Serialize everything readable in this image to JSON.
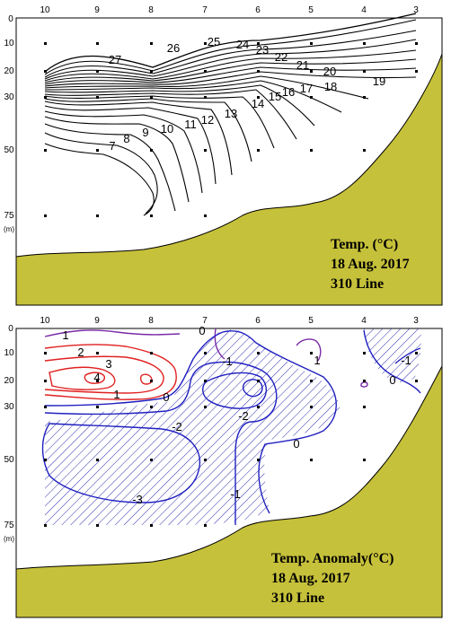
{
  "chart_data": [
    {
      "type": "contour",
      "title_lines": [
        "Temp. (°C)",
        "18 Aug. 2017",
        "310 Line"
      ],
      "x_ticks": [
        "10",
        "9",
        "8",
        "7",
        "6",
        "5",
        "4",
        "3"
      ],
      "y_ticks": [
        "0",
        "10",
        "20",
        "30",
        "50",
        "75"
      ],
      "y_unit": "(m)",
      "contour_values": [
        27,
        26,
        25,
        24,
        23,
        22,
        21,
        20,
        19,
        18,
        17,
        16,
        15,
        14,
        13,
        12,
        11,
        10,
        9,
        8,
        7
      ],
      "colors": {
        "land": "#c6c13a",
        "line": "#000000"
      }
    },
    {
      "type": "contour",
      "title_lines": [
        "Temp.  Anomaly(°C)",
        "18 Aug. 2017",
        "310 Line"
      ],
      "x_ticks": [
        "10",
        "9",
        "8",
        "7",
        "6",
        "5",
        "4",
        "3"
      ],
      "y_ticks": [
        "0",
        "10",
        "20",
        "30",
        "50",
        "75"
      ],
      "y_unit": "(m)",
      "contour_labels": [
        "1",
        "2",
        "3",
        "4",
        "1",
        "0",
        "0",
        "-1",
        "-2",
        "-2",
        "-3",
        "-1",
        "0",
        "1",
        "0",
        "-1"
      ],
      "colors": {
        "land": "#c6c13a",
        "positive": "#e02020",
        "zero": "#7a2aa8",
        "negative": "#2020c0",
        "hatch": "#3030b0"
      }
    }
  ]
}
